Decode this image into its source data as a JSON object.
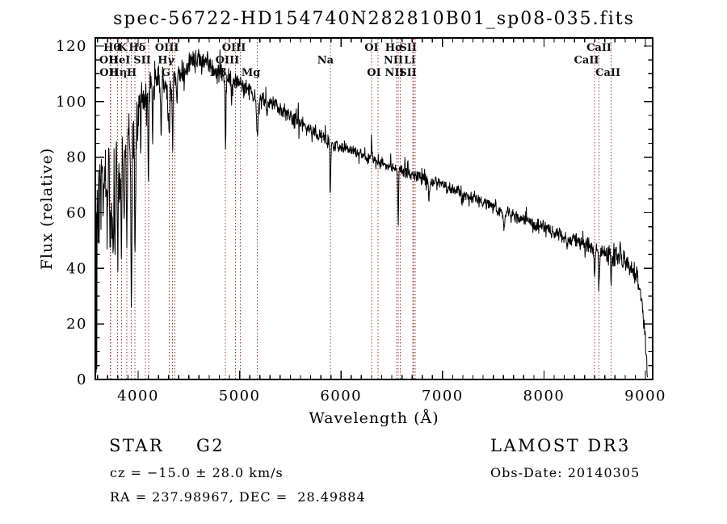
{
  "title": "spec-56722-HD154740N282810B01_sp08-035.fits",
  "footer": {
    "class_label": "STAR",
    "subclass": "G2",
    "survey": "LAMOST DR3",
    "cz": "cz = −15.0 ± 28.0 km/s",
    "obs_date": "Obs-Date: 20140305",
    "ra_dec": "RA = 237.98967, DEC =  28.49884"
  },
  "chart_data": {
    "type": "line",
    "title": "spec-56722-HD154740N282810B01_sp08-035.fits",
    "xlabel": "Wavelength (Å)",
    "ylabel": "Flux (relative)",
    "xlim": [
      3578,
      9071
    ],
    "ylim": [
      0,
      122.9
    ],
    "x_major_ticks": [
      4000,
      5000,
      6000,
      7000,
      8000,
      9000
    ],
    "x_minor_step": 100,
    "y_major_ticks": [
      0,
      20,
      40,
      60,
      80,
      100,
      120
    ],
    "y_minor_step": 5,
    "grid": false,
    "axis_color": "#000000",
    "spectrum_color": "#000000",
    "marker_color": "#a33a2e",
    "legend": "none",
    "continuum_points": [
      [
        3578,
        55
      ],
      [
        3620,
        62
      ],
      [
        3660,
        68
      ],
      [
        3700,
        71
      ],
      [
        3740,
        73
      ],
      [
        3780,
        76
      ],
      [
        3820,
        79
      ],
      [
        3860,
        82
      ],
      [
        3900,
        85
      ],
      [
        3950,
        88
      ],
      [
        4000,
        96
      ],
      [
        4050,
        101
      ],
      [
        4100,
        103
      ],
      [
        4150,
        106
      ],
      [
        4200,
        107
      ],
      [
        4250,
        106
      ],
      [
        4300,
        105
      ],
      [
        4350,
        108
      ],
      [
        4400,
        111
      ],
      [
        4450,
        112
      ],
      [
        4500,
        113
      ],
      [
        4550,
        114
      ],
      [
        4600,
        115
      ],
      [
        4650,
        114
      ],
      [
        4700,
        113
      ],
      [
        4750,
        111
      ],
      [
        4800,
        110
      ],
      [
        4861,
        108
      ],
      [
        4900,
        108
      ],
      [
        4950,
        107
      ],
      [
        5000,
        106
      ],
      [
        5100,
        104
      ],
      [
        5175,
        101
      ],
      [
        5250,
        101
      ],
      [
        5350,
        99
      ],
      [
        5450,
        96
      ],
      [
        5550,
        93
      ],
      [
        5650,
        91
      ],
      [
        5750,
        89
      ],
      [
        5850,
        86
      ],
      [
        5950,
        84
      ],
      [
        6050,
        83
      ],
      [
        6150,
        82
      ],
      [
        6250,
        80
      ],
      [
        6350,
        78
      ],
      [
        6450,
        77
      ],
      [
        6550,
        76
      ],
      [
        6650,
        74
      ],
      [
        6750,
        73
      ],
      [
        6850,
        72
      ],
      [
        6950,
        71
      ],
      [
        7050,
        69
      ],
      [
        7150,
        68
      ],
      [
        7250,
        66
      ],
      [
        7350,
        65
      ],
      [
        7450,
        63
      ],
      [
        7550,
        61
      ],
      [
        7650,
        60
      ],
      [
        7750,
        58
      ],
      [
        7850,
        57
      ],
      [
        7950,
        55
      ],
      [
        8050,
        54
      ],
      [
        8150,
        52
      ],
      [
        8250,
        51
      ],
      [
        8350,
        49
      ],
      [
        8450,
        48
      ],
      [
        8550,
        46
      ],
      [
        8650,
        45
      ],
      [
        8750,
        44
      ],
      [
        8850,
        41
      ],
      [
        8900,
        38
      ],
      [
        8940,
        34
      ],
      [
        8970,
        27
      ],
      [
        8995,
        16
      ],
      [
        9010,
        6
      ],
      [
        9020,
        2
      ]
    ],
    "absorption_lines": [
      [
        3727,
        20,
        6
      ],
      [
        3750,
        26,
        8
      ],
      [
        3771,
        24,
        4
      ],
      [
        3798,
        30,
        4
      ],
      [
        3820,
        18,
        4
      ],
      [
        3835,
        34,
        4
      ],
      [
        3860,
        20,
        4
      ],
      [
        3889,
        32,
        4
      ],
      [
        3934,
        58,
        5
      ],
      [
        3970,
        50,
        5
      ],
      [
        4026,
        12,
        4
      ],
      [
        4102,
        30,
        4
      ],
      [
        4144,
        10,
        4
      ],
      [
        4227,
        14,
        4
      ],
      [
        4305,
        16,
        8
      ],
      [
        4340,
        26,
        4
      ],
      [
        4383,
        12,
        4
      ],
      [
        4455,
        8,
        4
      ],
      [
        4861,
        26,
        4
      ],
      [
        4920,
        8,
        4
      ],
      [
        5175,
        11,
        8
      ],
      [
        5270,
        6,
        5
      ],
      [
        5894,
        16,
        4
      ],
      [
        6563,
        21,
        4
      ],
      [
        6867,
        8,
        6
      ],
      [
        7190,
        4,
        9
      ],
      [
        7605,
        7,
        9
      ],
      [
        8227,
        4,
        5
      ],
      [
        8498,
        11,
        4
      ],
      [
        8542,
        13,
        5
      ],
      [
        8662,
        12,
        4
      ]
    ],
    "emission_spikes": [
      [
        5577,
        5,
        3
      ],
      [
        6300,
        9,
        3
      ],
      [
        8752,
        6,
        4
      ]
    ],
    "noise_segments": [
      [
        3578,
        3650,
        14
      ],
      [
        3650,
        3750,
        10
      ],
      [
        3750,
        3900,
        7
      ],
      [
        3900,
        4050,
        5
      ],
      [
        4050,
        4300,
        3.5
      ],
      [
        4300,
        4700,
        2.5
      ],
      [
        4700,
        5200,
        2
      ],
      [
        5200,
        6000,
        1.5
      ],
      [
        6000,
        7000,
        1.2
      ],
      [
        7000,
        7800,
        1.3
      ],
      [
        7800,
        8600,
        1.6
      ],
      [
        8600,
        9000,
        2.2
      ],
      [
        9000,
        9071,
        2.5
      ]
    ],
    "line_markers": [
      {
        "wavelength": 3726,
        "label": "OII",
        "row": 2,
        "dx": -2
      },
      {
        "wavelength": 3729,
        "label": "OII",
        "row": 3,
        "dx": -2
      },
      {
        "wavelength": 3798,
        "label": "Hθ",
        "row": 1,
        "dx": -7
      },
      {
        "wavelength": 3835,
        "label": "Hη",
        "row": 3,
        "dx": -4
      },
      {
        "wavelength": 3889,
        "label": "HeI",
        "row": 2,
        "dx": -9
      },
      {
        "wavelength": 3934,
        "label": "K",
        "row": 1,
        "dx": -11
      },
      {
        "wavelength": 3968,
        "label": "H",
        "row": 3,
        "dx": -4
      },
      {
        "wavelength": 4072,
        "label": "SII",
        "row": 2,
        "dx": -4
      },
      {
        "wavelength": 4102,
        "label": "Hδ",
        "row": 1,
        "dx": -14
      },
      {
        "wavelength": 4305,
        "label": "G",
        "row": 3,
        "dx": -4
      },
      {
        "wavelength": 4340,
        "label": "Hγ",
        "row": 2,
        "dx": -8
      },
      {
        "wavelength": 4363,
        "label": "OIII",
        "row": 1,
        "dx": -10
      },
      {
        "wavelength": 4861,
        "label": "Hβ",
        "row": 3,
        "dx": -9
      },
      {
        "wavelength": 4959,
        "label": "OIII",
        "row": 2,
        "dx": -10
      },
      {
        "wavelength": 5007,
        "label": "OIII",
        "row": 1,
        "dx": -8
      },
      {
        "wavelength": 5175,
        "label": "Mg",
        "row": 3,
        "dx": -8
      },
      {
        "wavelength": 5894,
        "label": "Na",
        "row": 2,
        "dx": -6
      },
      {
        "wavelength": 6300,
        "label": "OI",
        "row": 1,
        "dx": 0
      },
      {
        "wavelength": 6364,
        "label": "OI",
        "row": 3,
        "dx": -5
      },
      {
        "wavelength": 6548,
        "label": "NII",
        "row": 2,
        "dx": -4
      },
      {
        "wavelength": 6563,
        "label": "Hα",
        "row": 1,
        "dx": -5
      },
      {
        "wavelength": 6583,
        "label": "NII",
        "row": 3,
        "dx": -7
      },
      {
        "wavelength": 6708,
        "label": "Li",
        "row": 2,
        "dx": -4
      },
      {
        "wavelength": 6716,
        "label": "SII",
        "row": 1,
        "dx": -7
      },
      {
        "wavelength": 6731,
        "label": "SII",
        "row": 3,
        "dx": -9
      },
      {
        "wavelength": 8498,
        "label": "CaII",
        "row": 2,
        "dx": -10
      },
      {
        "wavelength": 8542,
        "label": "CaII",
        "row": 1,
        "dx": 0
      },
      {
        "wavelength": 8662,
        "label": "CaII",
        "row": 3,
        "dx": -4
      }
    ]
  }
}
